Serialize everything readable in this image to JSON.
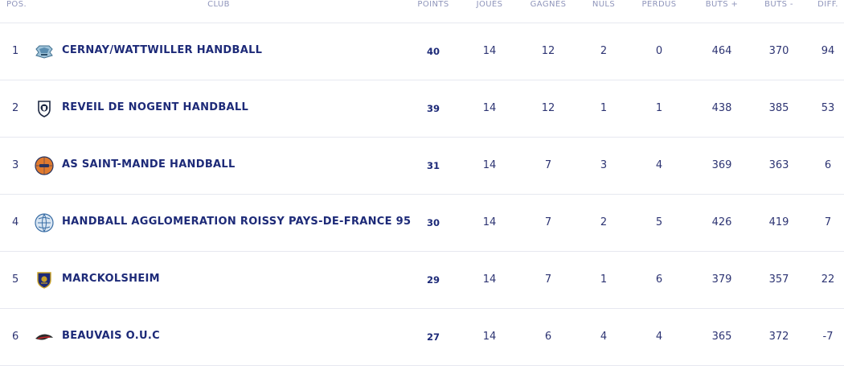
{
  "header": {
    "pos": "POS.",
    "club": "CLUB",
    "points": "POINTS",
    "played": "JOUÉS",
    "won": "GAGNÉS",
    "drawn": "NULS",
    "lost": "PERDUS",
    "goals_for": "BUTS +",
    "goals_against": "BUTS -",
    "diff": "DIFF."
  },
  "rows": [
    {
      "pos": "1",
      "club": "CERNAY/WATTWILLER HANDBALL",
      "logo": "cernay-logo-icon",
      "points": "40",
      "played": "14",
      "won": "12",
      "drawn": "2",
      "lost": "0",
      "goals_for": "464",
      "goals_against": "370",
      "diff": "94"
    },
    {
      "pos": "2",
      "club": "REVEIL DE NOGENT HANDBALL",
      "logo": "nogent-logo-icon",
      "points": "39",
      "played": "14",
      "won": "12",
      "drawn": "1",
      "lost": "1",
      "goals_for": "438",
      "goals_against": "385",
      "diff": "53"
    },
    {
      "pos": "3",
      "club": "AS SAINT-MANDE HANDBALL",
      "logo": "saint-mande-logo-icon",
      "points": "31",
      "played": "14",
      "won": "7",
      "drawn": "3",
      "lost": "4",
      "goals_for": "369",
      "goals_against": "363",
      "diff": "6"
    },
    {
      "pos": "4",
      "club": "HANDBALL AGGLOMERATION ROISSY PAYS-DE-FRANCE 95",
      "logo": "roissy-logo-icon",
      "points": "30",
      "played": "14",
      "won": "7",
      "drawn": "2",
      "lost": "5",
      "goals_for": "426",
      "goals_against": "419",
      "diff": "7"
    },
    {
      "pos": "5",
      "club": "MARCKOLSHEIM",
      "logo": "marckolsheim-logo-icon",
      "points": "29",
      "played": "14",
      "won": "7",
      "drawn": "1",
      "lost": "6",
      "goals_for": "379",
      "goals_against": "357",
      "diff": "22"
    },
    {
      "pos": "6",
      "club": "BEAUVAIS O.U.C",
      "logo": "beauvais-logo-icon",
      "points": "27",
      "played": "14",
      "won": "6",
      "drawn": "4",
      "lost": "4",
      "goals_for": "365",
      "goals_against": "372",
      "diff": "-7"
    }
  ],
  "colors": {
    "header_text": "#8f95bb",
    "club_text": "#1d2a78",
    "cell_text": "#2d3473",
    "divider": "#e6e8f0"
  }
}
